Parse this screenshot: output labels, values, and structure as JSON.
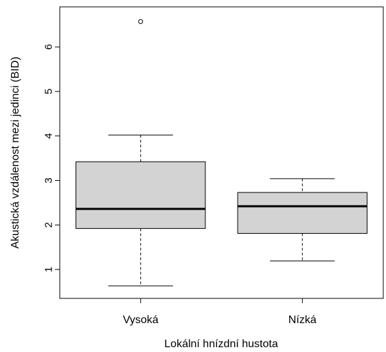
{
  "chart_data": {
    "type": "box",
    "title": "",
    "xlabel": "Lokální hnízdní hustota",
    "ylabel": "Akustická vzdálenost mezi jedinci (BID)",
    "ylim": [
      0.35,
      6.9
    ],
    "yticks": [
      1,
      2,
      3,
      4,
      5,
      6
    ],
    "grid": false,
    "box_fill": "#d3d3d3",
    "groups": [
      {
        "label": "Vysoká",
        "whisker_low": 0.63,
        "q1": 1.92,
        "median": 2.36,
        "q3": 3.42,
        "whisker_high": 4.02,
        "outliers": [
          6.57
        ]
      },
      {
        "label": "Nízká",
        "whisker_low": 1.19,
        "q1": 1.81,
        "median": 2.42,
        "q3": 2.73,
        "whisker_high": 3.04,
        "outliers": []
      }
    ]
  }
}
